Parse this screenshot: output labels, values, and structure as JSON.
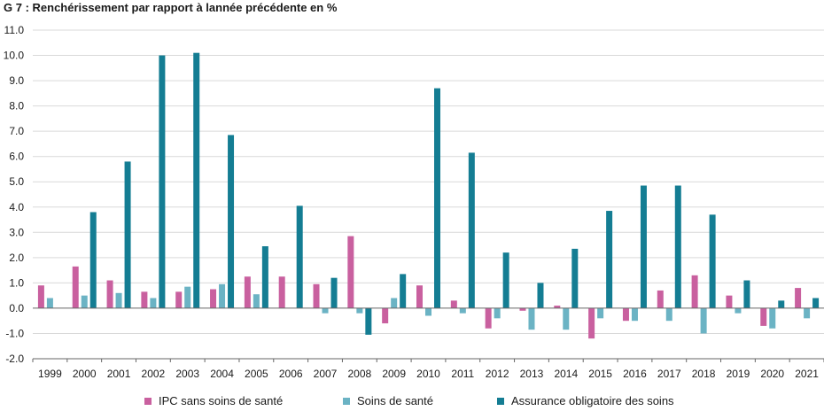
{
  "chart_data": {
    "type": "bar",
    "title": "G 7 : Renchérissement par rapport à lannée précédente en %",
    "xlabel": "",
    "ylabel": "",
    "ylim": [
      -2.0,
      11.0
    ],
    "ytick_step": 1.0,
    "ytick_labels": [
      "-2.0",
      "-1.0",
      "0.0",
      "1.0",
      "2.0",
      "3.0",
      "4.0",
      "5.0",
      "6.0",
      "7.0",
      "8.0",
      "9.0",
      "10.0",
      "11.0"
    ],
    "grid": true,
    "legend_position": "bottom",
    "categories": [
      "1999",
      "2000",
      "2001",
      "2002",
      "2003",
      "2004",
      "2005",
      "2006",
      "2007",
      "2008",
      "2009",
      "2010",
      "2011",
      "2012",
      "2013",
      "2014",
      "2015",
      "2016",
      "2017",
      "2018",
      "2019",
      "2020",
      "2021"
    ],
    "series": [
      {
        "name": "IPC sans soins de santé",
        "color": "#c9609f",
        "values": [
          0.9,
          1.65,
          1.1,
          0.65,
          0.65,
          0.75,
          1.25,
          1.25,
          0.95,
          2.85,
          -0.6,
          0.9,
          0.3,
          -0.8,
          -0.1,
          0.1,
          -1.2,
          -0.5,
          0.7,
          1.3,
          0.5,
          -0.7,
          0.8
        ]
      },
      {
        "name": "Soins de santé",
        "color": "#6bb3c4",
        "values": [
          0.4,
          0.5,
          0.6,
          0.4,
          0.85,
          0.95,
          0.55,
          0.0,
          -0.2,
          -0.2,
          0.4,
          -0.3,
          -0.2,
          -0.4,
          -0.85,
          -0.85,
          -0.4,
          -0.5,
          -0.5,
          -1.0,
          -0.2,
          -0.8,
          -0.4
        ]
      },
      {
        "name": "Assurance obligatoire des soins",
        "color": "#147d93",
        "values": [
          0.0,
          3.8,
          5.8,
          10.0,
          10.1,
          6.85,
          2.45,
          4.05,
          1.2,
          -1.05,
          1.35,
          8.7,
          6.15,
          2.2,
          1.0,
          2.35,
          3.85,
          4.85,
          4.85,
          3.7,
          1.1,
          0.3,
          0.4
        ]
      }
    ]
  }
}
